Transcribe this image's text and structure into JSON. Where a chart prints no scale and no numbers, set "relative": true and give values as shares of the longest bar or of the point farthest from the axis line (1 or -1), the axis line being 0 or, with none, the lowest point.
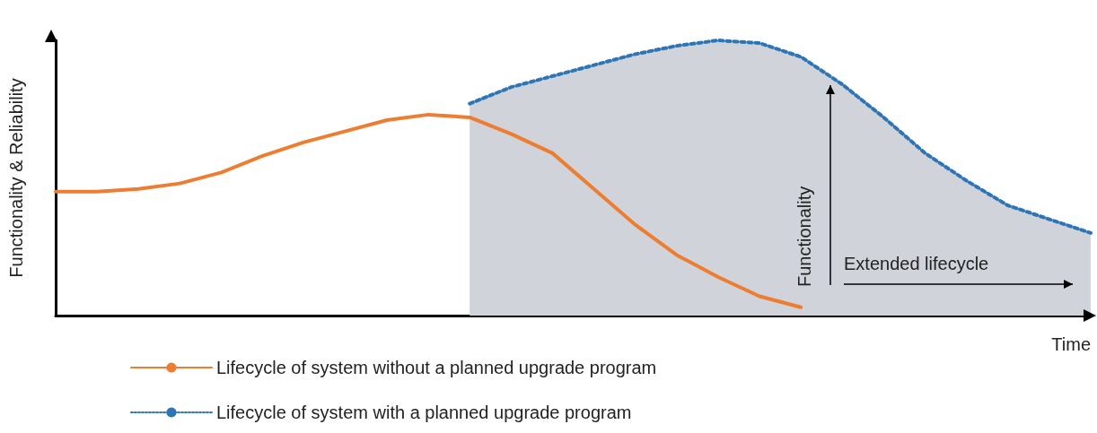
{
  "chart_data": {
    "type": "line",
    "relative": true,
    "xlabel": "Time",
    "ylabel": "Functionality & Reliability",
    "categories": [
      null,
      null,
      null,
      null,
      null,
      null,
      null,
      null,
      null,
      null,
      null,
      null,
      null,
      null,
      null,
      null,
      null,
      null,
      null,
      null,
      null,
      null,
      null,
      null,
      null,
      null
    ],
    "series": [
      {
        "name": "Lifecycle of system without a planned upgrade program",
        "color": "#ed7d31",
        "line_style": "solid",
        "values": [
          0.45,
          0.45,
          0.46,
          0.48,
          0.52,
          0.58,
          0.63,
          0.67,
          0.71,
          0.73,
          0.72,
          0.66,
          0.59,
          0.46,
          0.33,
          0.22,
          0.14,
          0.07,
          0.03,
          null,
          null,
          null,
          null,
          null,
          null,
          null
        ]
      },
      {
        "name": "Lifecycle of system with a planned upgrade program",
        "type": "area",
        "color": "#2e75b6",
        "line_style": "dotted",
        "values": [
          null,
          null,
          null,
          null,
          null,
          null,
          null,
          null,
          null,
          null,
          0.77,
          0.83,
          0.87,
          0.91,
          0.95,
          0.98,
          1,
          0.99,
          0.94,
          0.84,
          0.72,
          0.59,
          0.49,
          0.4,
          0.35,
          0.3
        ]
      }
    ],
    "annotations": [
      "Functionality",
      "Extended lifecycle"
    ],
    "legend": "bottom left",
    "marker": "none",
    "grid": false
  }
}
